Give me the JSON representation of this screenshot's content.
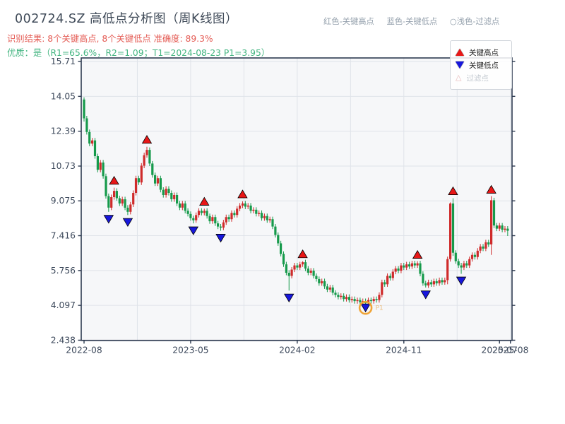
{
  "header": {
    "title": "002724.SZ 高低点分析图（周K线图）",
    "subtitle_result": "识别结果: 8个关键高点, 8个关键低点  准确度: 89.3%",
    "subtitle_quality": "优质：是（R1=65.6%，R2=1.09；T1=2024-08-23 P1=3.95）",
    "legend_note": {
      "high": "红色-关键高点",
      "low": "蓝色-关键低点",
      "filtered": "○浅色-过滤点"
    }
  },
  "legend": {
    "items": [
      {
        "label": "关键高点",
        "marker": "triangle-up",
        "color": "#e81717"
      },
      {
        "label": "关键低点",
        "marker": "triangle-down",
        "color": "#1717dd"
      },
      {
        "label": "过滤点",
        "marker": "triangle-up-open",
        "color": "#e8b8b8",
        "muted": true
      }
    ]
  },
  "colors": {
    "up": "#cf2b2b",
    "down": "#169a4b",
    "marker_high": "#e81717",
    "marker_low": "#1717dd",
    "ring": "#f0a437",
    "ring_label": "#e9bd7f",
    "grid": "#dfe3e9",
    "plot_bg": "#f6f7f9",
    "spine": "#2d3a50",
    "tick_label": "#3e4a5c",
    "title": "#3f4a58",
    "subtitle_red": "#e45b54",
    "subtitle_green": "#43b581",
    "note_gray": "#94a0ac"
  },
  "chart_data": {
    "type": "candlestick",
    "timeframe": "weekly",
    "title": "002724.SZ 高低点分析图（周K线图）",
    "ylim": [
      2.3,
      16.0
    ],
    "grid": true,
    "y_ticks": [
      15.71,
      14.05,
      12.39,
      10.73,
      9.075,
      7.416,
      5.756,
      4.097,
      2.438
    ],
    "x_ticks": [
      {
        "week": 0,
        "label": "2022-08"
      },
      {
        "week": 39,
        "label": "2023-05"
      },
      {
        "week": 78,
        "label": "2024-02"
      },
      {
        "week": 117,
        "label": "2024-11"
      },
      {
        "week": 152,
        "label": "2025-07"
      },
      {
        "week": 156,
        "label": "2025-08"
      }
    ],
    "grid_weeks": [
      19.5,
      39,
      58.5,
      78,
      97.5,
      117,
      136.5,
      156
    ],
    "ohlc": [
      [
        13.9,
        14.0,
        12.85,
        13.0
      ],
      [
        13.0,
        13.12,
        12.23,
        12.35
      ],
      [
        12.35,
        12.47,
        11.68,
        11.8
      ],
      [
        11.8,
        12.07,
        11.68,
        11.95
      ],
      [
        11.95,
        12.07,
        11.08,
        11.2
      ],
      [
        11.2,
        11.32,
        10.43,
        10.55
      ],
      [
        10.55,
        11.02,
        10.43,
        10.9
      ],
      [
        10.9,
        11.02,
        10.13,
        10.25
      ],
      [
        10.25,
        10.37,
        9.18,
        9.3
      ],
      [
        9.3,
        9.42,
        8.55,
        8.75
      ],
      [
        8.75,
        9.37,
        8.63,
        9.25
      ],
      [
        9.25,
        9.7,
        9.13,
        9.55
      ],
      [
        9.55,
        9.67,
        9.08,
        9.2
      ],
      [
        9.2,
        9.32,
        8.83,
        8.95
      ],
      [
        8.95,
        9.27,
        8.83,
        9.15
      ],
      [
        9.15,
        9.27,
        8.63,
        8.75
      ],
      [
        8.75,
        8.87,
        8.4,
        8.55
      ],
      [
        8.55,
        9.02,
        8.43,
        8.9
      ],
      [
        8.9,
        9.57,
        8.78,
        9.45
      ],
      [
        9.45,
        10.27,
        9.33,
        10.15
      ],
      [
        10.15,
        10.27,
        9.83,
        9.95
      ],
      [
        9.95,
        10.87,
        9.83,
        10.75
      ],
      [
        10.75,
        11.37,
        10.63,
        11.25
      ],
      [
        11.25,
        11.65,
        11.13,
        11.5
      ],
      [
        11.5,
        11.62,
        10.73,
        10.85
      ],
      [
        10.85,
        10.97,
        10.18,
        10.3
      ],
      [
        10.3,
        10.42,
        9.78,
        9.9
      ],
      [
        9.9,
        10.27,
        9.78,
        10.15
      ],
      [
        10.15,
        10.27,
        9.48,
        9.6
      ],
      [
        9.6,
        9.72,
        9.23,
        9.35
      ],
      [
        9.35,
        9.77,
        9.23,
        9.65
      ],
      [
        9.65,
        9.77,
        9.33,
        9.45
      ],
      [
        9.45,
        9.57,
        9.03,
        9.15
      ],
      [
        9.15,
        9.47,
        9.03,
        9.35
      ],
      [
        9.35,
        9.47,
        8.83,
        8.95
      ],
      [
        8.95,
        9.07,
        8.63,
        8.75
      ],
      [
        8.75,
        9.07,
        8.63,
        8.95
      ],
      [
        8.95,
        9.07,
        8.48,
        8.6
      ],
      [
        8.6,
        8.72,
        8.33,
        8.45
      ],
      [
        8.45,
        8.57,
        8.13,
        8.25
      ],
      [
        8.25,
        8.37,
        8.0,
        8.15
      ],
      [
        8.15,
        8.52,
        8.03,
        8.4
      ],
      [
        8.4,
        8.72,
        8.28,
        8.6
      ],
      [
        8.6,
        8.72,
        8.38,
        8.5
      ],
      [
        8.5,
        8.7,
        8.38,
        8.6
      ],
      [
        8.6,
        8.72,
        8.23,
        8.35
      ],
      [
        8.35,
        8.47,
        7.98,
        8.1
      ],
      [
        8.1,
        8.42,
        7.98,
        8.3
      ],
      [
        8.3,
        8.42,
        7.88,
        8.0
      ],
      [
        8.0,
        8.12,
        7.73,
        7.85
      ],
      [
        7.85,
        7.97,
        7.65,
        7.8
      ],
      [
        7.8,
        8.17,
        7.68,
        8.05
      ],
      [
        8.05,
        8.42,
        7.93,
        8.3
      ],
      [
        8.3,
        8.42,
        8.08,
        8.2
      ],
      [
        8.2,
        8.62,
        8.08,
        8.5
      ],
      [
        8.5,
        8.62,
        8.28,
        8.4
      ],
      [
        8.4,
        8.82,
        8.28,
        8.7
      ],
      [
        8.7,
        8.97,
        8.58,
        8.85
      ],
      [
        8.85,
        9.05,
        8.73,
        8.95
      ],
      [
        8.95,
        9.07,
        8.68,
        8.8
      ],
      [
        8.8,
        8.97,
        8.68,
        8.85
      ],
      [
        8.85,
        8.97,
        8.48,
        8.6
      ],
      [
        8.6,
        8.77,
        8.48,
        8.65
      ],
      [
        8.65,
        8.77,
        8.33,
        8.45
      ],
      [
        8.45,
        8.62,
        8.33,
        8.5
      ],
      [
        8.5,
        8.62,
        8.13,
        8.25
      ],
      [
        8.25,
        8.47,
        8.13,
        8.35
      ],
      [
        8.35,
        8.47,
        8.03,
        8.15
      ],
      [
        8.15,
        8.32,
        8.03,
        8.2
      ],
      [
        8.2,
        8.32,
        7.73,
        7.85
      ],
      [
        7.85,
        7.97,
        7.33,
        7.45
      ],
      [
        7.45,
        7.57,
        6.93,
        7.05
      ],
      [
        7.05,
        7.17,
        6.43,
        6.55
      ],
      [
        6.55,
        6.67,
        5.93,
        6.05
      ],
      [
        6.05,
        6.17,
        5.53,
        5.65
      ],
      [
        5.65,
        5.77,
        4.8,
        5.5
      ],
      [
        5.5,
        5.92,
        5.38,
        5.8
      ],
      [
        5.8,
        6.12,
        5.68,
        6.0
      ],
      [
        6.0,
        6.12,
        5.78,
        5.9
      ],
      [
        5.9,
        6.17,
        5.78,
        6.05
      ],
      [
        6.05,
        6.2,
        5.93,
        6.15
      ],
      [
        6.15,
        6.27,
        5.73,
        5.85
      ],
      [
        5.85,
        5.97,
        5.53,
        5.65
      ],
      [
        5.65,
        5.87,
        5.53,
        5.75
      ],
      [
        5.75,
        5.87,
        5.38,
        5.5
      ],
      [
        5.5,
        5.62,
        5.23,
        5.35
      ],
      [
        5.35,
        5.47,
        5.03,
        5.15
      ],
      [
        5.15,
        5.37,
        5.03,
        5.25
      ],
      [
        5.25,
        5.37,
        4.88,
        5.0
      ],
      [
        5.0,
        5.12,
        4.73,
        4.85
      ],
      [
        4.85,
        5.07,
        4.73,
        4.95
      ],
      [
        4.95,
        5.07,
        4.58,
        4.7
      ],
      [
        4.7,
        4.82,
        4.48,
        4.6
      ],
      [
        4.6,
        4.72,
        4.38,
        4.5
      ],
      [
        4.5,
        4.67,
        4.38,
        4.55
      ],
      [
        4.55,
        4.67,
        4.28,
        4.4
      ],
      [
        4.4,
        4.62,
        4.28,
        4.5
      ],
      [
        4.5,
        4.62,
        4.23,
        4.35
      ],
      [
        4.35,
        4.52,
        4.23,
        4.4
      ],
      [
        4.4,
        4.52,
        4.18,
        4.3
      ],
      [
        4.3,
        4.47,
        4.18,
        4.35
      ],
      [
        4.35,
        4.47,
        4.13,
        4.25
      ],
      [
        4.25,
        4.42,
        4.13,
        4.3
      ],
      [
        4.3,
        4.42,
        4.1,
        4.2
      ],
      [
        4.2,
        4.47,
        4.08,
        4.35
      ],
      [
        4.35,
        4.47,
        4.18,
        4.3
      ],
      [
        4.3,
        4.52,
        4.18,
        4.4
      ],
      [
        4.4,
        4.52,
        4.23,
        4.35
      ],
      [
        4.35,
        4.72,
        4.23,
        4.6
      ],
      [
        4.6,
        5.32,
        4.48,
        5.2
      ],
      [
        5.2,
        5.32,
        4.98,
        5.1
      ],
      [
        5.1,
        5.62,
        4.98,
        5.5
      ],
      [
        5.5,
        5.62,
        5.28,
        5.4
      ],
      [
        5.4,
        5.82,
        5.28,
        5.7
      ],
      [
        5.7,
        5.97,
        5.58,
        5.85
      ],
      [
        5.85,
        5.97,
        5.63,
        5.75
      ],
      [
        5.75,
        6.12,
        5.63,
        6.0
      ],
      [
        6.0,
        6.12,
        5.78,
        5.9
      ],
      [
        5.9,
        6.17,
        5.78,
        6.05
      ],
      [
        6.05,
        6.17,
        5.83,
        5.95
      ],
      [
        5.95,
        6.22,
        5.83,
        6.1
      ],
      [
        6.1,
        6.22,
        5.88,
        6.0
      ],
      [
        6.0,
        6.2,
        5.88,
        6.1
      ],
      [
        6.1,
        6.22,
        5.48,
        5.6
      ],
      [
        5.6,
        5.72,
        5.03,
        5.15
      ],
      [
        5.15,
        5.27,
        4.95,
        5.05
      ],
      [
        5.05,
        5.32,
        4.93,
        5.2
      ],
      [
        5.2,
        5.32,
        4.98,
        5.1
      ],
      [
        5.1,
        5.37,
        4.98,
        5.25
      ],
      [
        5.25,
        5.37,
        5.03,
        5.15
      ],
      [
        5.15,
        5.42,
        5.03,
        5.3
      ],
      [
        5.3,
        5.42,
        5.08,
        5.2
      ],
      [
        5.2,
        5.42,
        5.08,
        5.3
      ],
      [
        5.3,
        6.42,
        5.1,
        6.3
      ],
      [
        6.3,
        9.0,
        6.18,
        8.95
      ],
      [
        8.95,
        9.2,
        6.45,
        6.6
      ],
      [
        6.6,
        6.72,
        6.08,
        6.2
      ],
      [
        6.2,
        6.32,
        5.88,
        6.0
      ],
      [
        6.0,
        6.12,
        5.6,
        5.9
      ],
      [
        5.9,
        6.22,
        5.78,
        6.1
      ],
      [
        6.1,
        6.22,
        5.88,
        6.0
      ],
      [
        6.0,
        6.42,
        5.88,
        6.3
      ],
      [
        6.3,
        6.62,
        6.18,
        6.5
      ],
      [
        6.5,
        6.62,
        6.28,
        6.4
      ],
      [
        6.4,
        6.82,
        6.28,
        6.7
      ],
      [
        6.7,
        7.02,
        6.58,
        6.9
      ],
      [
        6.9,
        7.02,
        6.68,
        6.8
      ],
      [
        6.8,
        7.22,
        6.68,
        7.1
      ],
      [
        7.1,
        7.22,
        6.88,
        7.0
      ],
      [
        7.0,
        9.3,
        6.5,
        9.1
      ],
      [
        9.1,
        9.22,
        7.78,
        7.9
      ],
      [
        7.9,
        8.02,
        7.63,
        7.75
      ],
      [
        7.75,
        8.02,
        7.63,
        7.9
      ],
      [
        7.9,
        8.02,
        7.58,
        7.7
      ],
      [
        7.7,
        7.87,
        7.58,
        7.75
      ],
      [
        7.75,
        7.87,
        7.4,
        7.65
      ]
    ],
    "key_highs": [
      {
        "week": 11,
        "price": 10.05
      },
      {
        "week": 23,
        "price": 12.0
      },
      {
        "week": 44,
        "price": 9.05
      },
      {
        "week": 58,
        "price": 9.4
      },
      {
        "week": 80,
        "price": 6.55
      },
      {
        "week": 122,
        "price": 6.52
      },
      {
        "week": 135,
        "price": 9.55
      },
      {
        "week": 149,
        "price": 9.62
      }
    ],
    "key_lows": [
      {
        "week": 9,
        "price": 8.2
      },
      {
        "week": 16,
        "price": 8.05
      },
      {
        "week": 40,
        "price": 7.65
      },
      {
        "week": 50,
        "price": 7.3
      },
      {
        "week": 75,
        "price": 4.45
      },
      {
        "week": 103,
        "price": 3.98
      },
      {
        "week": 125,
        "price": 4.6
      },
      {
        "week": 138,
        "price": 5.26
      }
    ],
    "highlight": {
      "week": 103,
      "price": 3.98,
      "label": "P1"
    }
  }
}
